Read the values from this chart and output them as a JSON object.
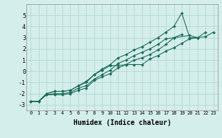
{
  "xlabel": "Humidex (Indice chaleur)",
  "background_color": "#d4eeeb",
  "grid_color": "#b8d8d4",
  "line_color": "#1a6b5a",
  "xlim": [
    -0.5,
    23.5
  ],
  "ylim": [
    -3.5,
    6.0
  ],
  "xticks": [
    0,
    1,
    2,
    3,
    4,
    5,
    6,
    7,
    8,
    9,
    10,
    11,
    12,
    13,
    14,
    15,
    16,
    17,
    18,
    19,
    20,
    21,
    22,
    23
  ],
  "yticks": [
    -3,
    -2,
    -1,
    0,
    1,
    2,
    3,
    4,
    5
  ],
  "lines_data": [
    {
      "x": [
        0,
        1,
        2,
        3,
        4,
        5,
        6,
        7,
        8,
        9,
        10,
        11,
        12,
        13,
        14,
        15,
        16,
        17,
        18,
        19
      ],
      "y": [
        -2.7,
        -2.7,
        -2.1,
        -2.1,
        -2.1,
        -2.0,
        -1.7,
        -1.5,
        -0.8,
        -0.5,
        -0.2,
        0.3,
        0.6,
        1.0,
        1.2,
        1.5,
        1.9,
        2.4,
        3.0,
        3.3
      ]
    },
    {
      "x": [
        0,
        1,
        2,
        3,
        4,
        5,
        6,
        7,
        8,
        9,
        10,
        11,
        12,
        13,
        14,
        15,
        16,
        17,
        18,
        20,
        21
      ],
      "y": [
        -2.7,
        -2.7,
        -2.1,
        -2.0,
        -2.0,
        -1.9,
        -1.5,
        -1.3,
        -0.7,
        -0.3,
        0.1,
        0.7,
        1.0,
        1.4,
        1.7,
        2.0,
        2.4,
        2.9,
        3.0,
        3.2,
        3.0
      ]
    },
    {
      "x": [
        0,
        1,
        2,
        3,
        4,
        5,
        6,
        7,
        8,
        9,
        10,
        11,
        12,
        13,
        14,
        15,
        16,
        17,
        18,
        19,
        20,
        21,
        22,
        23
      ],
      "y": [
        -2.7,
        -2.7,
        -2.0,
        -1.8,
        -1.8,
        -1.7,
        -1.3,
        -1.0,
        -0.3,
        0.1,
        0.5,
        0.5,
        0.6,
        0.6,
        0.6,
        1.1,
        1.4,
        1.8,
        2.1,
        2.5,
        2.9,
        3.0,
        3.1,
        3.5
      ]
    },
    {
      "x": [
        0,
        1,
        2,
        3,
        4,
        5,
        6,
        7,
        8,
        9,
        10,
        11,
        12,
        13,
        14,
        15,
        16,
        17,
        18,
        19,
        20,
        21,
        22
      ],
      "y": [
        -2.7,
        -2.7,
        -2.0,
        -1.8,
        -1.8,
        -1.7,
        -1.3,
        -0.9,
        -0.3,
        0.2,
        0.6,
        1.2,
        1.5,
        1.9,
        2.2,
        2.6,
        3.0,
        3.5,
        4.0,
        5.2,
        3.0,
        3.0,
        3.5
      ]
    }
  ],
  "markersize": 2.0,
  "linewidth": 0.8
}
